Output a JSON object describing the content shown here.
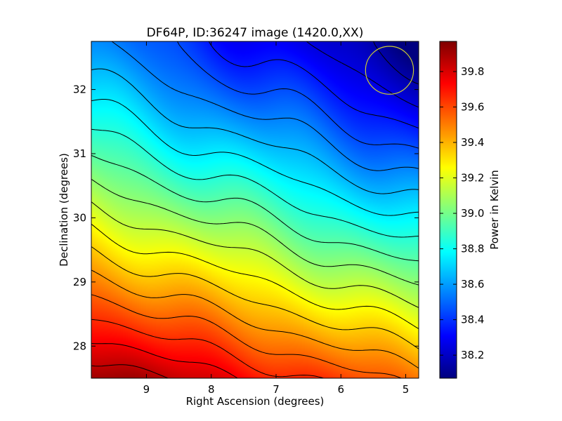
{
  "chart_data": {
    "type": "heatmap",
    "title": "DF64P, ID:36247 image (1420.0,XX)",
    "xlabel": "Right Ascension (degrees)",
    "ylabel": "Declination (degrees)",
    "xlim": [
      9.85,
      4.8
    ],
    "ylim": [
      27.5,
      32.75
    ],
    "xticks": [
      9,
      8,
      7,
      6,
      5
    ],
    "yticks": [
      28,
      29,
      30,
      31,
      32
    ],
    "colorbar": {
      "label": "Power in Kelvin",
      "range": [
        38.07,
        39.97
      ],
      "ticks": [
        38.2,
        38.4,
        38.6,
        38.8,
        39.0,
        39.2,
        39.4,
        39.6,
        39.8
      ],
      "colormap": "jet"
    },
    "field_anchors": [
      {
        "ra": 9.85,
        "dec": 32.75,
        "value": 38.55
      },
      {
        "ra": 9.85,
        "dec": 27.5,
        "value": 39.95
      },
      {
        "ra": 4.8,
        "dec": 32.75,
        "value": 38.07
      },
      {
        "ra": 4.8,
        "dec": 27.5,
        "value": 39.5
      }
    ],
    "contour_levels": [
      38.15,
      38.25,
      38.35,
      38.45,
      38.55,
      38.65,
      38.75,
      38.85,
      38.95,
      39.05,
      39.15,
      39.25,
      39.35,
      39.45,
      39.55,
      39.65,
      39.75,
      39.85
    ],
    "marker": {
      "type": "circle",
      "ra": 5.25,
      "dec": 32.3,
      "radius_deg": 0.37,
      "color": "#cccc33"
    },
    "grid": false
  }
}
